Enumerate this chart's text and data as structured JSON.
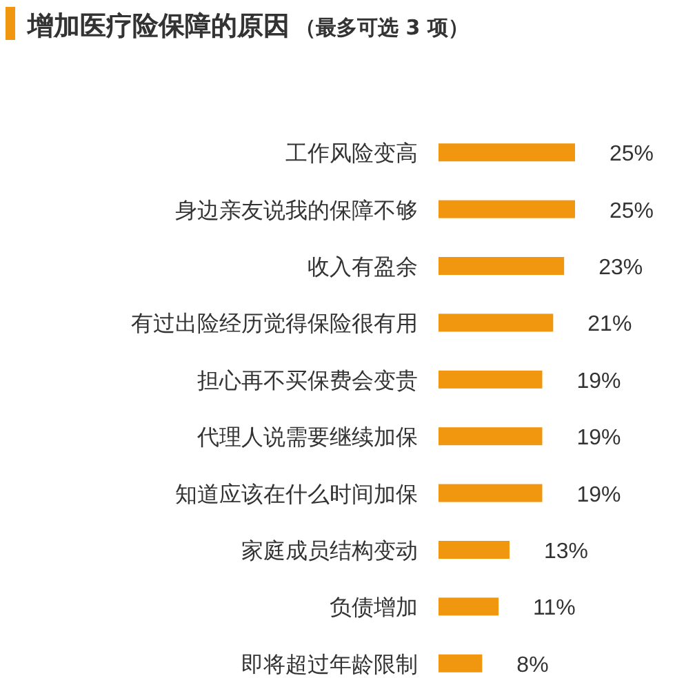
{
  "chart_data": {
    "type": "bar",
    "orientation": "horizontal",
    "title": "增加医疗险保障的原因",
    "subtitle": "（最多可选 3 项）",
    "categories": [
      "工作风险变高",
      "身边亲友说我的保障不够",
      "收入有盈余",
      "有过出险经历觉得保险很有用",
      "担心再不买保费会变贵",
      "代理人说需要继续加保",
      "知道应该在什么时间加保",
      "家庭成员结构变动",
      "负债增加",
      "即将超过年龄限制"
    ],
    "values": [
      25,
      25,
      23,
      21,
      19,
      19,
      19,
      13,
      11,
      8
    ],
    "value_labels": [
      "25%",
      "25%",
      "23%",
      "21%",
      "19%",
      "19%",
      "19%",
      "13%",
      "11%",
      "8%"
    ],
    "color": "#f0960f"
  }
}
